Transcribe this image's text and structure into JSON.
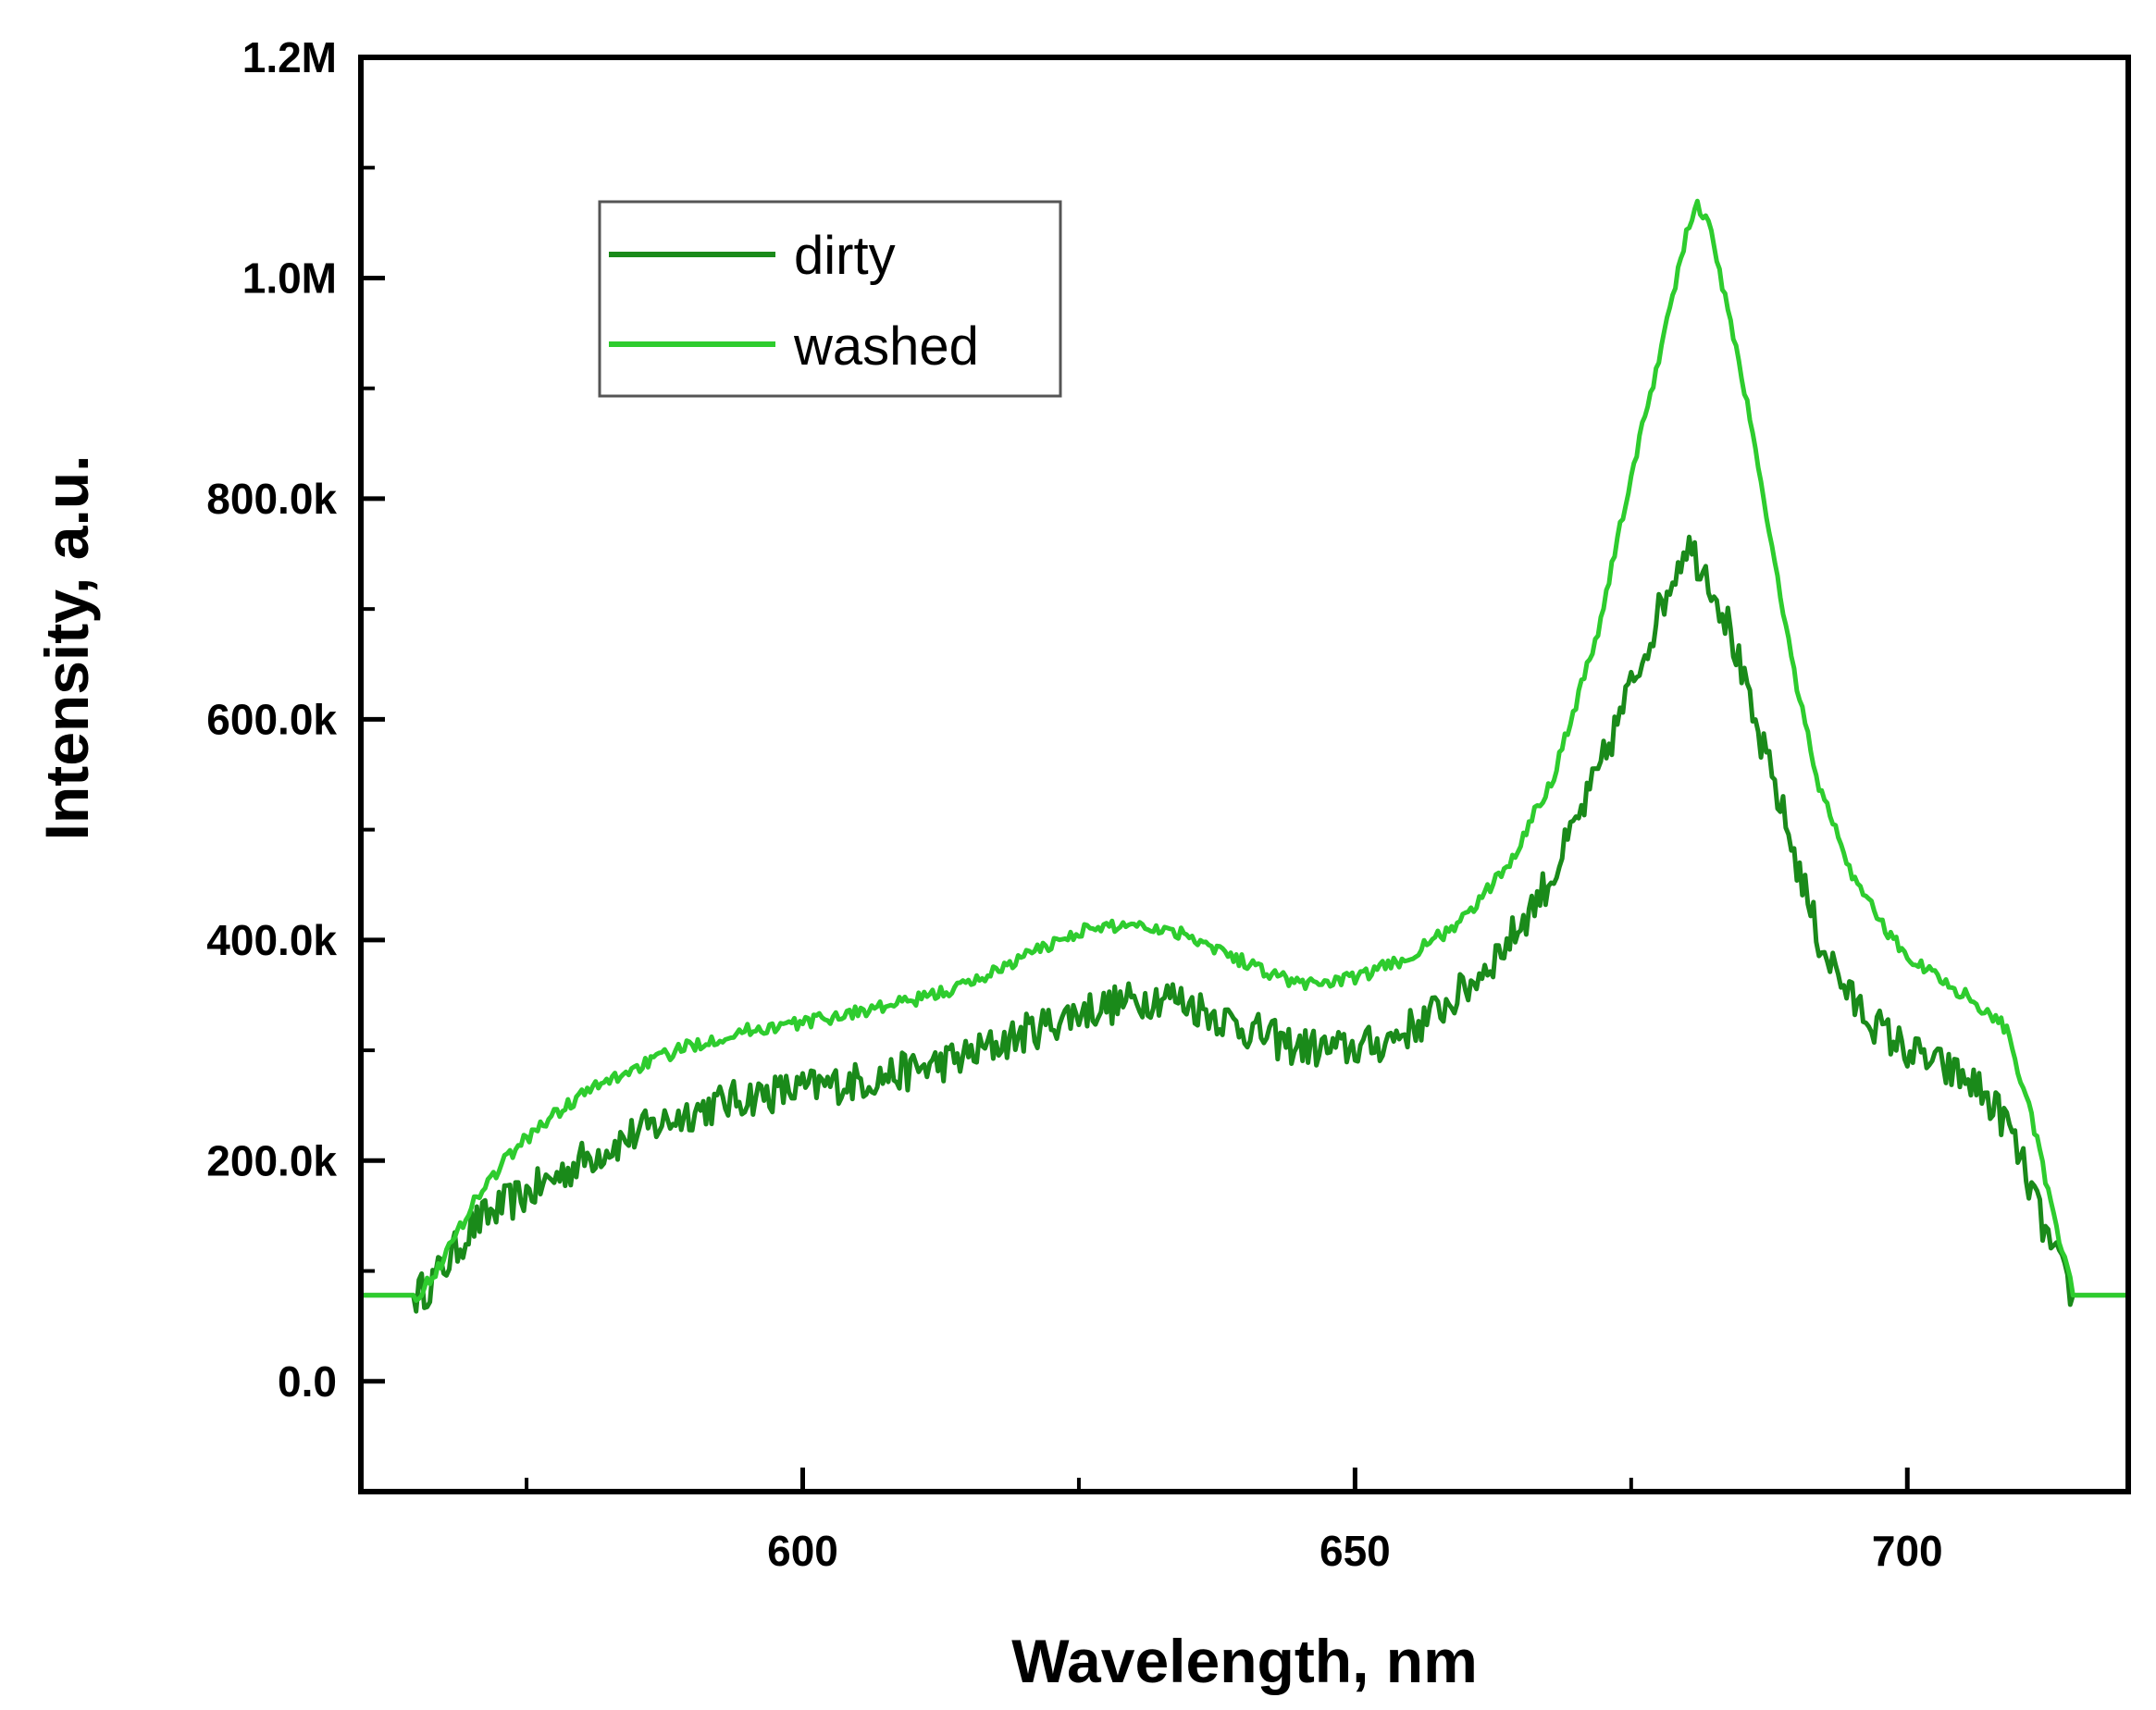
{
  "chart_data": {
    "type": "line",
    "title": "",
    "xlabel": "Wavelength, nm",
    "ylabel": "Intensity, a.u.",
    "xlim": [
      560,
      720
    ],
    "ylim": [
      -100000,
      1200000
    ],
    "x_ticks": [
      {
        "value": 600,
        "label": "600"
      },
      {
        "value": 650,
        "label": "650"
      },
      {
        "value": 700,
        "label": "700"
      }
    ],
    "x_minor_ticks": [
      575,
      625,
      675
    ],
    "y_ticks": [
      {
        "value": 0,
        "label": "0.0"
      },
      {
        "value": 200000,
        "label": "200.0k"
      },
      {
        "value": 400000,
        "label": "400.0k"
      },
      {
        "value": 600000,
        "label": "600.0k"
      },
      {
        "value": 800000,
        "label": "800.0k"
      },
      {
        "value": 1000000,
        "label": "1.0M"
      },
      {
        "value": 1200000,
        "label": "1.2M"
      }
    ],
    "y_minor_ticks": [
      100000,
      300000,
      500000,
      700000,
      900000,
      1100000
    ],
    "grid": false,
    "legend": {
      "position": "top-left"
    },
    "series": [
      {
        "name": "dirty",
        "color": "#1a8a1a",
        "x": [
          560,
          565,
          566,
          568,
          570,
          573,
          576,
          580,
          585,
          590,
          595,
          600,
          605,
          610,
          615,
          620,
          625,
          630,
          633,
          636,
          640,
          644,
          648,
          652,
          656,
          660,
          664,
          668,
          672,
          675,
          678,
          680,
          682,
          684,
          686,
          688,
          690,
          692,
          695,
          698,
          700,
          703,
          706,
          709,
          711,
          713,
          715,
          717,
          720
        ],
        "y": [
          78000,
          78000,
          85000,
          110000,
          140000,
          160000,
          175000,
          200000,
          225000,
          245000,
          258000,
          265000,
          272000,
          282000,
          295000,
          315000,
          335000,
          345000,
          350000,
          338000,
          320000,
          305000,
          300000,
          305000,
          325000,
          355000,
          400000,
          460000,
          550000,
          630000,
          710000,
          760000,
          730000,
          680000,
          600000,
          540000,
          470000,
          400000,
          345000,
          315000,
          300000,
          285000,
          270000,
          235000,
          180000,
          120000,
          78000,
          78000,
          78000
        ]
      },
      {
        "name": "washed",
        "color": "#2ecc2e",
        "x": [
          560,
          565,
          566,
          568,
          570,
          573,
          576,
          580,
          585,
          590,
          595,
          600,
          605,
          610,
          615,
          620,
          625,
          630,
          635,
          640,
          645,
          650,
          655,
          660,
          664,
          668,
          672,
          675,
          678,
          680,
          681,
          682,
          684,
          686,
          688,
          690,
          692,
          695,
          698,
          700,
          703,
          706,
          709,
          711,
          713,
          715,
          717,
          720
        ],
        "y": [
          78000,
          78000,
          88000,
          120000,
          160000,
          200000,
          230000,
          260000,
          285000,
          305000,
          318000,
          325000,
          335000,
          345000,
          360000,
          385000,
          408000,
          415000,
          405000,
          380000,
          360000,
          365000,
          385000,
          420000,
          470000,
          550000,
          680000,
          820000,
          950000,
          1040000,
          1065000,
          1050000,
          960000,
          860000,
          740000,
          630000,
          540000,
          460000,
          410000,
          385000,
          365000,
          345000,
          320000,
          250000,
          160000,
          78000,
          78000,
          78000
        ]
      }
    ]
  }
}
